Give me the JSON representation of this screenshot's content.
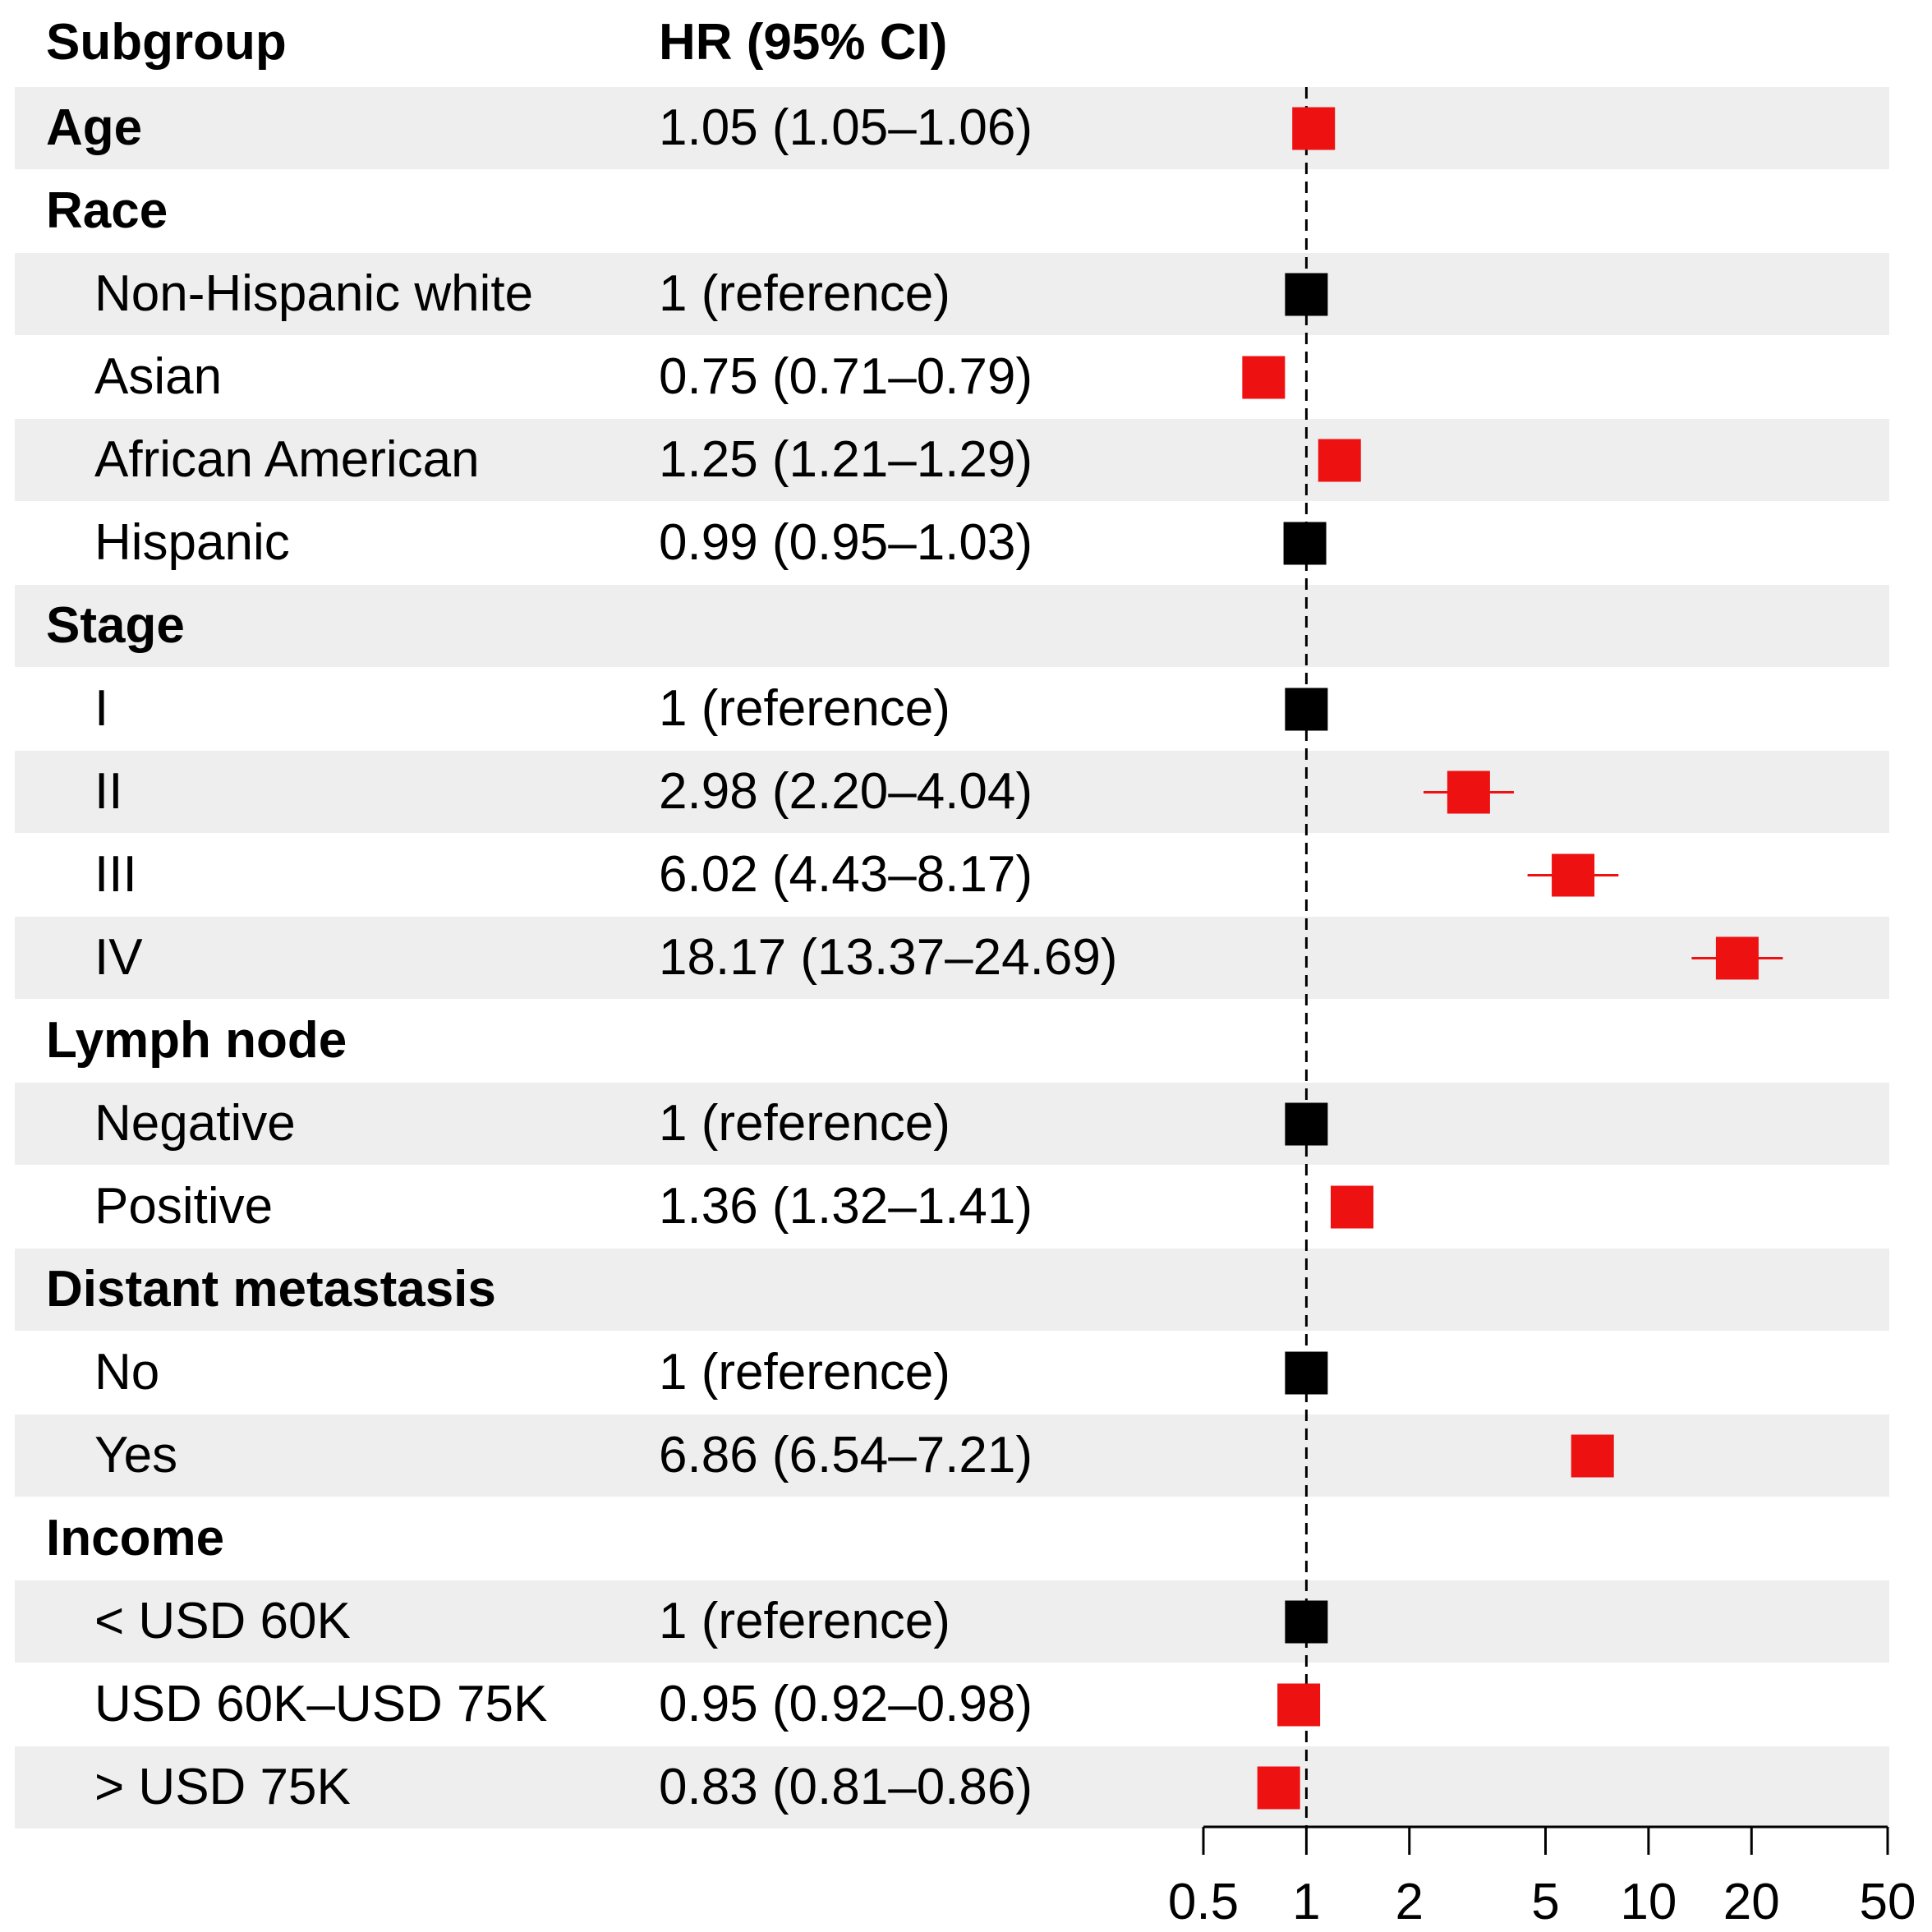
{
  "chart_data": {
    "type": "forest",
    "headers": {
      "subgroup": "Subgroup",
      "hr": "HR (95% CI)"
    },
    "x_scale": "log",
    "xlim": [
      0.5,
      50
    ],
    "x_ticks": [
      0.5,
      1,
      2,
      5,
      10,
      20,
      50
    ],
    "x_tick_labels": [
      "0.5",
      "1",
      "2",
      "5",
      "10",
      "20",
      "50"
    ],
    "reference_line": 1,
    "colors": {
      "significant": "#ee1111",
      "reference": "#000000",
      "band": "#eeeeee"
    },
    "rows": [
      {
        "label": "Age",
        "group": true,
        "text": "1.05 (1.05–1.06)",
        "hr": 1.05,
        "lo": 1.05,
        "hi": 1.06,
        "color": "#ee1111"
      },
      {
        "label": "Race",
        "group": true,
        "text": ""
      },
      {
        "label": "Non-Hispanic white",
        "group": false,
        "text": "1 (reference)",
        "hr": 1,
        "lo": 1,
        "hi": 1,
        "color": "#000000"
      },
      {
        "label": "Asian",
        "group": false,
        "text": "0.75 (0.71–0.79)",
        "hr": 0.75,
        "lo": 0.71,
        "hi": 0.79,
        "color": "#ee1111"
      },
      {
        "label": "African American",
        "group": false,
        "text": "1.25 (1.21–1.29)",
        "hr": 1.25,
        "lo": 1.21,
        "hi": 1.29,
        "color": "#ee1111"
      },
      {
        "label": "Hispanic",
        "group": false,
        "text": "0.99 (0.95–1.03)",
        "hr": 0.99,
        "lo": 0.95,
        "hi": 1.03,
        "color": "#000000"
      },
      {
        "label": "Stage",
        "group": true,
        "text": ""
      },
      {
        "label": "I",
        "group": false,
        "text": "1 (reference)",
        "hr": 1,
        "lo": 1,
        "hi": 1,
        "color": "#000000"
      },
      {
        "label": "II",
        "group": false,
        "text": "2.98 (2.20–4.04)",
        "hr": 2.98,
        "lo": 2.2,
        "hi": 4.04,
        "color": "#ee1111"
      },
      {
        "label": "III",
        "group": false,
        "text": "6.02 (4.43–8.17)",
        "hr": 6.02,
        "lo": 4.43,
        "hi": 8.17,
        "color": "#ee1111"
      },
      {
        "label": "IV",
        "group": false,
        "text": "18.17 (13.37–24.69)",
        "hr": 18.17,
        "lo": 13.37,
        "hi": 24.69,
        "color": "#ee1111"
      },
      {
        "label": "Lymph node",
        "group": true,
        "text": ""
      },
      {
        "label": "Negative",
        "group": false,
        "text": "1 (reference)",
        "hr": 1,
        "lo": 1,
        "hi": 1,
        "color": "#000000"
      },
      {
        "label": "Positive",
        "group": false,
        "text": "1.36 (1.32–1.41)",
        "hr": 1.36,
        "lo": 1.32,
        "hi": 1.41,
        "color": "#ee1111"
      },
      {
        "label": "Distant metastasis",
        "group": true,
        "text": ""
      },
      {
        "label": "No",
        "group": false,
        "text": "1 (reference)",
        "hr": 1,
        "lo": 1,
        "hi": 1,
        "color": "#000000"
      },
      {
        "label": "Yes",
        "group": false,
        "text": "6.86 (6.54–7.21)",
        "hr": 6.86,
        "lo": 6.54,
        "hi": 7.21,
        "color": "#ee1111"
      },
      {
        "label": "Income",
        "group": true,
        "text": ""
      },
      {
        "label": "< USD 60K",
        "group": false,
        "text": "1 (reference)",
        "hr": 1,
        "lo": 1,
        "hi": 1,
        "color": "#000000"
      },
      {
        "label": "USD 60K–USD 75K",
        "group": false,
        "text": "0.95 (0.92–0.98)",
        "hr": 0.95,
        "lo": 0.92,
        "hi": 0.98,
        "color": "#ee1111"
      },
      {
        "label": "> USD 75K",
        "group": false,
        "text": "0.83 (0.81–0.86)",
        "hr": 0.83,
        "lo": 0.81,
        "hi": 0.86,
        "color": "#ee1111"
      }
    ]
  }
}
